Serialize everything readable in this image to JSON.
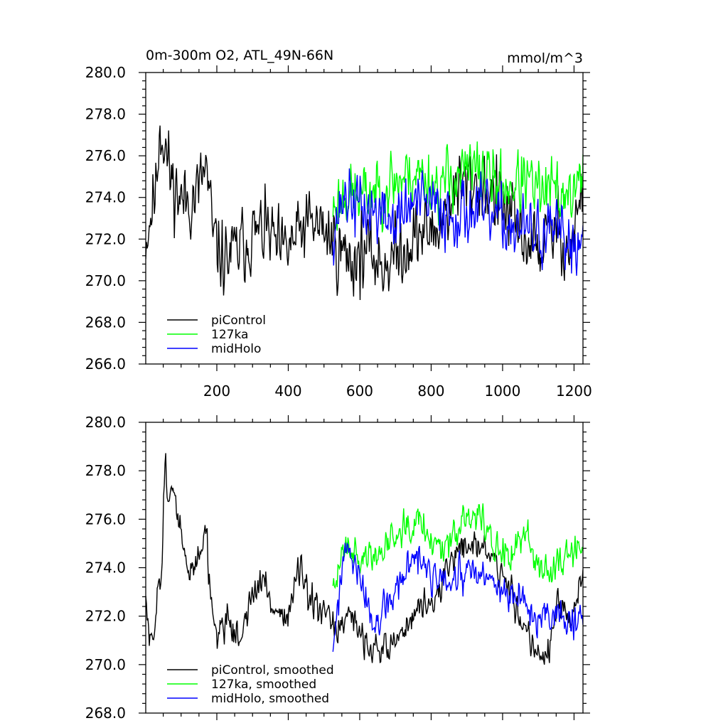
{
  "chart_data": [
    {
      "type": "line",
      "title": "0m-300m O2, ATL_49N-66N",
      "units": "mmol/m^3",
      "xlim": [
        1,
        1225
      ],
      "ylim": [
        266,
        280
      ],
      "x_ticks": [
        200,
        400,
        600,
        800,
        1000,
        1200
      ],
      "x_tick_labels": [
        "200",
        "400",
        "600",
        "800",
        "1000",
        "1200"
      ],
      "x_minor_step": 50,
      "y_ticks": [
        266,
        268,
        270,
        272,
        274,
        276,
        278,
        280
      ],
      "y_tick_labels": [
        "266.0",
        "268.0",
        "270.0",
        "272.0",
        "274.0",
        "276.0",
        "278.0",
        "280.0"
      ],
      "y_minor_step": 0.4,
      "legend": [
        {
          "name": "piControl",
          "color": "#000000"
        },
        {
          "name": "127ka",
          "color": "#00ff00"
        },
        {
          "name": "midHolo",
          "color": "#0000ff"
        }
      ],
      "legend_placement": "lower-left",
      "series": [
        {
          "name": "piControl",
          "color": "#000000",
          "x_range": [
            1,
            1225
          ],
          "anchors": [
            [
              1,
              272
            ],
            [
              30,
              274.5
            ],
            [
              40,
              277.5
            ],
            [
              55,
              276.5
            ],
            [
              70,
              275
            ],
            [
              100,
              273.8
            ],
            [
              140,
              274
            ],
            [
              170,
              275.5
            ],
            [
              190,
              272
            ],
            [
              220,
              271
            ],
            [
              260,
              271.5
            ],
            [
              300,
              272.2
            ],
            [
              340,
              272.5
            ],
            [
              380,
              271.2
            ],
            [
              420,
              272
            ],
            [
              460,
              272.8
            ],
            [
              500,
              272.5
            ],
            [
              540,
              271.5
            ],
            [
              580,
              271
            ],
            [
              620,
              271.5
            ],
            [
              660,
              270.8
            ],
            [
              700,
              271.2
            ],
            [
              760,
              272.2
            ],
            [
              820,
              272.5
            ],
            [
              860,
              274
            ],
            [
              900,
              274.8
            ],
            [
              950,
              274.5
            ],
            [
              1000,
              273.6
            ],
            [
              1050,
              272.2
            ],
            [
              1100,
              271.5
            ],
            [
              1150,
              272.5
            ],
            [
              1190,
              271.5
            ],
            [
              1225,
              274.5
            ]
          ],
          "noise": 1.8,
          "seed": 11
        },
        {
          "name": "127ka",
          "color": "#00ff00",
          "x_range": [
            525,
            1225
          ],
          "anchors": [
            [
              525,
              273.5
            ],
            [
              560,
              274.2
            ],
            [
              600,
              274
            ],
            [
              650,
              274.3
            ],
            [
              700,
              274.8
            ],
            [
              760,
              275.2
            ],
            [
              820,
              274.5
            ],
            [
              880,
              275.2
            ],
            [
              940,
              275.3
            ],
            [
              1000,
              274.5
            ],
            [
              1060,
              274.8
            ],
            [
              1100,
              274.2
            ],
            [
              1150,
              274.3
            ],
            [
              1200,
              274.2
            ],
            [
              1225,
              275
            ]
          ],
          "noise": 1.6,
          "seed": 23
        },
        {
          "name": "midHolo",
          "color": "#0000ff",
          "x_range": [
            525,
            1225
          ],
          "anchors": [
            [
              525,
              272.5
            ],
            [
              560,
              274.2
            ],
            [
              600,
              273.5
            ],
            [
              650,
              273.3
            ],
            [
              700,
              272.8
            ],
            [
              750,
              273.8
            ],
            [
              800,
              273.6
            ],
            [
              850,
              273.2
            ],
            [
              900,
              273.4
            ],
            [
              950,
              273.2
            ],
            [
              1000,
              272.8
            ],
            [
              1050,
              272.5
            ],
            [
              1100,
              272.2
            ],
            [
              1150,
              272.2
            ],
            [
              1200,
              271.8
            ],
            [
              1225,
              272
            ]
          ],
          "noise": 1.6,
          "seed": 37
        }
      ]
    },
    {
      "type": "line",
      "xlim": [
        1,
        1225
      ],
      "ylim": [
        268,
        280
      ],
      "x_ticks": [
        200,
        400,
        600,
        800,
        1000,
        1200
      ],
      "x_minor_step": 50,
      "y_ticks": [
        268,
        270,
        272,
        274,
        276,
        278,
        280
      ],
      "y_tick_labels": [
        "268.0",
        "270.0",
        "272.0",
        "274.0",
        "276.0",
        "278.0",
        "280.0"
      ],
      "y_minor_step": 0.4,
      "legend": [
        {
          "name": "piControl, smoothed",
          "color": "#000000"
        },
        {
          "name": "127ka, smoothed",
          "color": "#00ff00"
        },
        {
          "name": "midHolo, smoothed",
          "color": "#0000ff"
        }
      ],
      "legend_placement": "lower-left",
      "series": [
        {
          "name": "piControl, smoothed",
          "color": "#000000",
          "x_range": [
            1,
            1225
          ],
          "anchors": [
            [
              1,
              272.6
            ],
            [
              10,
              271.2
            ],
            [
              20,
              270.5
            ],
            [
              35,
              273.5
            ],
            [
              45,
              273.8
            ],
            [
              55,
              278.2
            ],
            [
              65,
              277.3
            ],
            [
              80,
              276.8
            ],
            [
              100,
              275.5
            ],
            [
              120,
              273.5
            ],
            [
              140,
              274.2
            ],
            [
              170,
              275.8
            ],
            [
              180,
              273
            ],
            [
              200,
              271.2
            ],
            [
              230,
              272
            ],
            [
              260,
              271
            ],
            [
              300,
              272.8
            ],
            [
              330,
              273.5
            ],
            [
              360,
              272.3
            ],
            [
              400,
              272
            ],
            [
              430,
              274
            ],
            [
              460,
              272.5
            ],
            [
              500,
              272
            ],
            [
              540,
              271.5
            ],
            [
              580,
              271.8
            ],
            [
              620,
              271
            ],
            [
              660,
              270.5
            ],
            [
              700,
              271
            ],
            [
              760,
              272.2
            ],
            [
              820,
              272.8
            ],
            [
              860,
              274.5
            ],
            [
              900,
              275
            ],
            [
              950,
              274.8
            ],
            [
              1000,
              273.7
            ],
            [
              1050,
              272
            ],
            [
              1080,
              271
            ],
            [
              1120,
              270.2
            ],
            [
              1160,
              272.5
            ],
            [
              1190,
              271.5
            ],
            [
              1225,
              274
            ]
          ],
          "noise": 0.7,
          "seed": 51
        },
        {
          "name": "127ka, smoothed",
          "color": "#00ff00",
          "x_range": [
            525,
            1225
          ],
          "anchors": [
            [
              525,
              272.8
            ],
            [
              560,
              275.3
            ],
            [
              600,
              274.3
            ],
            [
              650,
              274.5
            ],
            [
              700,
              275.5
            ],
            [
              760,
              276.2
            ],
            [
              820,
              274.8
            ],
            [
              880,
              275.8
            ],
            [
              940,
              276.2
            ],
            [
              980,
              274.8
            ],
            [
              1020,
              274.2
            ],
            [
              1060,
              275.5
            ],
            [
              1100,
              274.3
            ],
            [
              1140,
              273.8
            ],
            [
              1180,
              274.5
            ],
            [
              1225,
              275
            ]
          ],
          "noise": 0.75,
          "seed": 63
        },
        {
          "name": "midHolo, smoothed",
          "color": "#0000ff",
          "x_range": [
            525,
            1225
          ],
          "anchors": [
            [
              525,
              270.8
            ],
            [
              560,
              274.8
            ],
            [
              600,
              273.5
            ],
            [
              640,
              271.5
            ],
            [
              680,
              272.5
            ],
            [
              720,
              273.5
            ],
            [
              760,
              274.5
            ],
            [
              800,
              273.6
            ],
            [
              850,
              273.2
            ],
            [
              900,
              273.8
            ],
            [
              950,
              273.5
            ],
            [
              1000,
              273.2
            ],
            [
              1050,
              272.5
            ],
            [
              1100,
              271.8
            ],
            [
              1150,
              272
            ],
            [
              1200,
              271.8
            ],
            [
              1225,
              271.5
            ]
          ],
          "noise": 0.75,
          "seed": 77
        }
      ]
    }
  ]
}
